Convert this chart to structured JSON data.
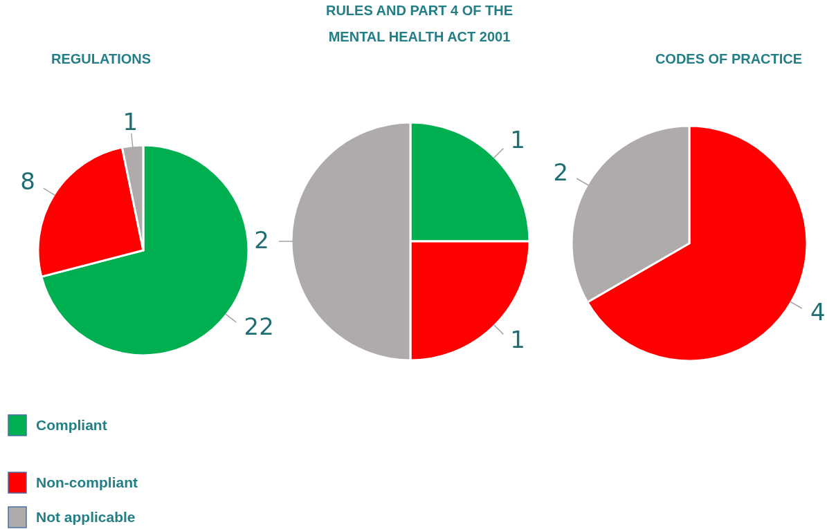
{
  "chart_data": [
    {
      "type": "pie",
      "title": "REGULATIONS",
      "categories": [
        "Compliant",
        "Non-compliant",
        "Not applicable"
      ],
      "values": [
        22,
        8,
        1
      ],
      "colors": [
        "#00b050",
        "#ff0000",
        "#afabab"
      ],
      "data_labels": true,
      "legend": "bottom left"
    },
    {
      "type": "pie",
      "title": "RULES AND PART 4 OF THE\nMENTAL HEALTH ACT 2001",
      "categories": [
        null,
        null,
        null
      ],
      "values": [
        1,
        1,
        2
      ],
      "colors": [
        "#00b050",
        "#ff0000",
        "#afabab"
      ],
      "data_labels": true
    },
    {
      "type": "pie",
      "title": "CODES OF PRACTICE",
      "categories": [
        null,
        null
      ],
      "values": [
        4,
        2
      ],
      "colors": [
        "#ff0000",
        "#afabab"
      ],
      "data_labels": true
    }
  ]
}
